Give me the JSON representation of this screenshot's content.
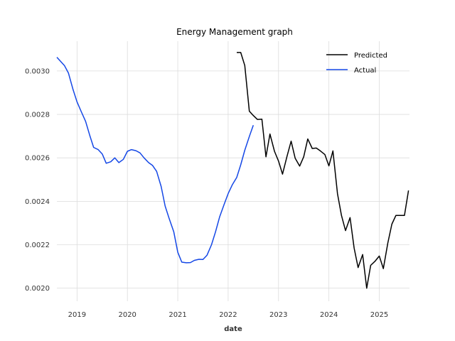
{
  "chart_data": {
    "type": "line",
    "title": "Energy Management graph",
    "xlabel": "date",
    "ylabel": "",
    "x_ticks": [
      "2019",
      "2020",
      "2021",
      "2022",
      "2023",
      "2024",
      "2025"
    ],
    "y_ticks": [
      "0.0020",
      "0.0022",
      "0.0024",
      "0.0026",
      "0.0028",
      "0.0030"
    ],
    "xlim": [
      2018.6,
      2025.6
    ],
    "ylim": [
      0.00194,
      0.003137
    ],
    "grid": true,
    "legend_position": "top-right",
    "series": [
      {
        "name": "Predicted",
        "color": "#000000",
        "points": [
          [
            2022.17,
            0.003085
          ],
          [
            2022.25,
            0.003085
          ],
          [
            2022.33,
            0.003025
          ],
          [
            2022.42,
            0.002815
          ],
          [
            2022.5,
            0.002795
          ],
          [
            2022.58,
            0.002777
          ],
          [
            2022.67,
            0.002778
          ],
          [
            2022.75,
            0.002605
          ],
          [
            2022.83,
            0.00271
          ],
          [
            2022.92,
            0.00263
          ],
          [
            2023.0,
            0.002585
          ],
          [
            2023.08,
            0.002525
          ],
          [
            2023.17,
            0.002608
          ],
          [
            2023.25,
            0.002677
          ],
          [
            2023.33,
            0.002598
          ],
          [
            2023.42,
            0.002562
          ],
          [
            2023.5,
            0.002605
          ],
          [
            2023.58,
            0.002687
          ],
          [
            2023.67,
            0.002643
          ],
          [
            2023.75,
            0.002645
          ],
          [
            2023.83,
            0.002632
          ],
          [
            2023.92,
            0.002615
          ],
          [
            2024.0,
            0.002563
          ],
          [
            2024.08,
            0.002632
          ],
          [
            2024.17,
            0.002435
          ],
          [
            2024.25,
            0.002335
          ],
          [
            2024.33,
            0.002265
          ],
          [
            2024.42,
            0.002325
          ],
          [
            2024.5,
            0.002185
          ],
          [
            2024.58,
            0.002095
          ],
          [
            2024.67,
            0.002155
          ],
          [
            2024.75,
            0.002
          ],
          [
            2024.83,
            0.002105
          ],
          [
            2024.92,
            0.002125
          ],
          [
            2025.0,
            0.002148
          ],
          [
            2025.08,
            0.00209
          ],
          [
            2025.17,
            0.002208
          ],
          [
            2025.25,
            0.002295
          ],
          [
            2025.33,
            0.002335
          ],
          [
            2025.42,
            0.002335
          ],
          [
            2025.5,
            0.002335
          ],
          [
            2025.58,
            0.00245
          ]
        ]
      },
      {
        "name": "Actual",
        "color": "#1447e6",
        "points": [
          [
            2018.6,
            0.003063
          ],
          [
            2018.67,
            0.003045
          ],
          [
            2018.75,
            0.003025
          ],
          [
            2018.83,
            0.00299
          ],
          [
            2018.92,
            0.002915
          ],
          [
            2019.0,
            0.002858
          ],
          [
            2019.08,
            0.002815
          ],
          [
            2019.17,
            0.002768
          ],
          [
            2019.25,
            0.002705
          ],
          [
            2019.33,
            0.002648
          ],
          [
            2019.42,
            0.002638
          ],
          [
            2019.5,
            0.002618
          ],
          [
            2019.58,
            0.002575
          ],
          [
            2019.67,
            0.002582
          ],
          [
            2019.75,
            0.0026
          ],
          [
            2019.83,
            0.002578
          ],
          [
            2019.92,
            0.002593
          ],
          [
            2020.0,
            0.00263
          ],
          [
            2020.08,
            0.002638
          ],
          [
            2020.17,
            0.002633
          ],
          [
            2020.25,
            0.002623
          ],
          [
            2020.33,
            0.0026
          ],
          [
            2020.42,
            0.002578
          ],
          [
            2020.5,
            0.002565
          ],
          [
            2020.58,
            0.002538
          ],
          [
            2020.67,
            0.002468
          ],
          [
            2020.75,
            0.002378
          ],
          [
            2020.83,
            0.00232
          ],
          [
            2020.92,
            0.00226
          ],
          [
            2021.0,
            0.002165
          ],
          [
            2021.08,
            0.00212
          ],
          [
            2021.17,
            0.002117
          ],
          [
            2021.25,
            0.002118
          ],
          [
            2021.33,
            0.002128
          ],
          [
            2021.42,
            0.002133
          ],
          [
            2021.5,
            0.002132
          ],
          [
            2021.58,
            0.002152
          ],
          [
            2021.67,
            0.0022
          ],
          [
            2021.75,
            0.00226
          ],
          [
            2021.83,
            0.002328
          ],
          [
            2021.92,
            0.002385
          ],
          [
            2022.0,
            0.002435
          ],
          [
            2022.08,
            0.002475
          ],
          [
            2022.17,
            0.00251
          ],
          [
            2022.25,
            0.002568
          ],
          [
            2022.33,
            0.002635
          ],
          [
            2022.42,
            0.002698
          ],
          [
            2022.5,
            0.00275
          ]
        ]
      }
    ]
  }
}
